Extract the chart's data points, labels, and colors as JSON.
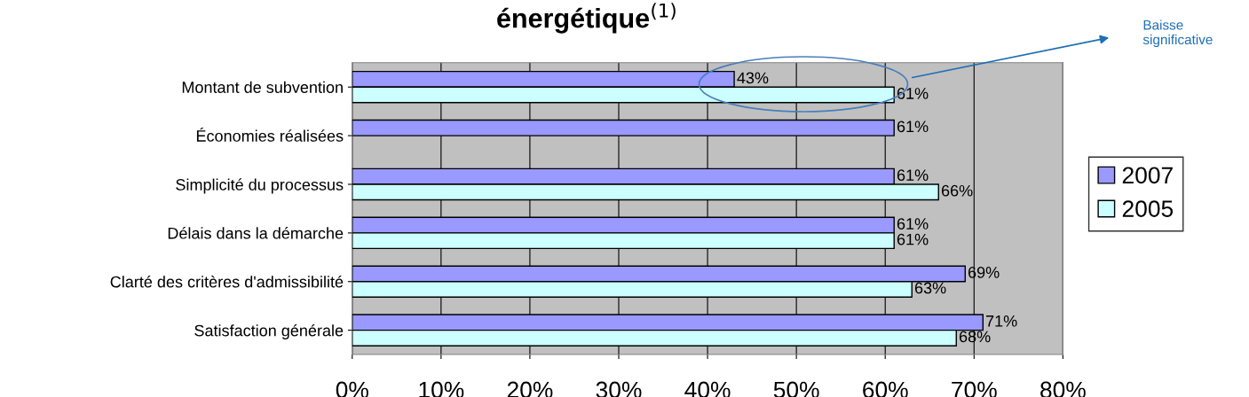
{
  "chart_data": {
    "type": "bar",
    "orientation": "horizontal",
    "title": "énergétique$^{(1)}$",
    "categories": [
      "Montant de subvention",
      "Économies réalisées",
      "Simplicité du processus",
      "Délais dans la démarche",
      "Clarté des critères d'admissibilité",
      "Satisfaction générale"
    ],
    "series": [
      {
        "name": "2007",
        "color": "#9999ff",
        "values": [
          43,
          61,
          61,
          61,
          69,
          71
        ],
        "value_labels": [
          "43%",
          "61%",
          "61%",
          "61%",
          "69%",
          "71%"
        ]
      },
      {
        "name": "2005",
        "color": "#ccffff",
        "values": [
          61,
          null,
          66,
          61,
          63,
          68
        ],
        "value_labels": [
          "61%",
          null,
          "66%",
          "61%",
          "63%",
          "68%"
        ]
      }
    ],
    "xlim": [
      0,
      80
    ],
    "xticks": [
      {
        "value": 0,
        "label": "0%"
      },
      {
        "value": 10,
        "label": "10%"
      },
      {
        "value": 20,
        "label": "20%"
      },
      {
        "value": 30,
        "label": "30%"
      },
      {
        "value": 40,
        "label": "40%"
      },
      {
        "value": 50,
        "label": "50%"
      },
      {
        "value": 60,
        "label": "60%"
      },
      {
        "value": 70,
        "label": "70%"
      },
      {
        "value": 80,
        "label": "80%"
      }
    ],
    "grid": "x",
    "legend": "right",
    "annotations": [
      "Baisse significative"
    ]
  }
}
